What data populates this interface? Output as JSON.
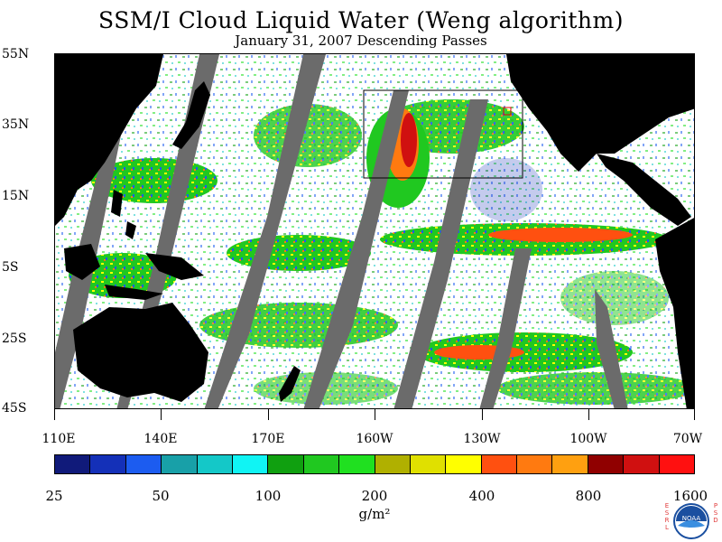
{
  "title": "SSM/I Cloud Liquid Water (Weng algorithm)",
  "subtitle": "January 31, 2007  Descending Passes",
  "map": {
    "lat_labels": [
      "55N",
      "35N",
      "15N",
      "5S",
      "25S",
      "45S"
    ],
    "lon_labels": [
      "110E",
      "140E",
      "170E",
      "160W",
      "130W",
      "100W",
      "70W"
    ],
    "land_color": "#000000",
    "no_data_color": "#6b6b6b",
    "clear_color": "#ffffff"
  },
  "colorbar": {
    "colors": [
      "#101a7a",
      "#1430b8",
      "#1c5cf0",
      "#18a0a8",
      "#14c8c8",
      "#10f4f4",
      "#10a010",
      "#20c820",
      "#20e020",
      "#b0b000",
      "#e0e000",
      "#ffff00",
      "#ff5010",
      "#ff7a10",
      "#ffa010",
      "#900000",
      "#d01010",
      "#ff1010"
    ],
    "labels": [
      "25",
      "50",
      "100",
      "200",
      "400",
      "800",
      "1600"
    ],
    "units": "g/m²"
  },
  "logo": {
    "text": "NOAA",
    "left_letters": "ESRL",
    "right_letters": "PSD"
  }
}
